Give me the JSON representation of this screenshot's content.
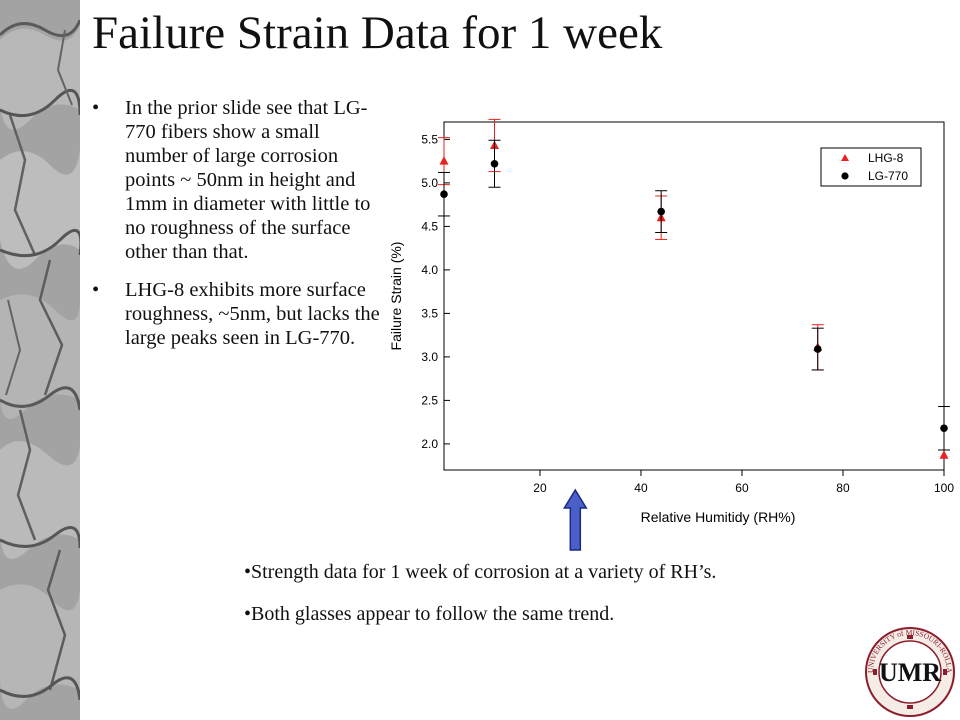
{
  "title": "Failure Strain Data for 1 week",
  "bullets": [
    "In the prior slide see that LG-770 fibers show a small number of large corrosion points ~ 50nm in height and 1mm in diameter with little to no roughness of the surface other than that.",
    "LHG-8 exhibits more surface roughness, ~5nm, but lacks the large peaks seen in LG-770."
  ],
  "bullet_glyph": "•",
  "notes": [
    "•Strength data for 1 week of corrosion at a variety of RH’s.",
    "•Both glasses appear to follow the same trend."
  ],
  "logo": {
    "text": "UNIVERSITY of MISSOURI-ROLLA",
    "monogram": "UMR",
    "subtext": "1870 · SCHOOL of MINES and METALLURGY"
  },
  "colors": {
    "lhg8": "#e8231e",
    "lg770": "#000000",
    "arrow_fill": "#4a5fc7",
    "arrow_stroke": "#1a2a80",
    "seal": "#8b1d2c"
  },
  "chart_data": {
    "type": "scatter",
    "title": "",
    "xlabel": "Relative Humitidy (RH%)",
    "ylabel": "Failure Strain (%)",
    "xlim": [
      1,
      100
    ],
    "ylim": [
      1.7,
      5.7
    ],
    "xticks": [
      20,
      40,
      60,
      80,
      100
    ],
    "yticks": [
      2.0,
      2.5,
      3.0,
      3.5,
      4.0,
      4.5,
      5.0,
      5.5
    ],
    "grid": false,
    "legend_position": "top-right",
    "series": [
      {
        "name": "LHG-8",
        "marker": "triangle",
        "points": [
          {
            "x": 1,
            "y": 5.25,
            "err": 0.27
          },
          {
            "x": 11,
            "y": 5.43,
            "err": 0.3
          },
          {
            "x": 44,
            "y": 4.6,
            "err": 0.25
          },
          {
            "x": 75,
            "y": 3.11,
            "err": 0.26
          },
          {
            "x": 100,
            "y": 1.87,
            "err": 0.0
          }
        ]
      },
      {
        "name": "LG-770",
        "marker": "circle",
        "points": [
          {
            "x": 1,
            "y": 4.87,
            "err": 0.25
          },
          {
            "x": 11,
            "y": 5.22,
            "err": 0.27
          },
          {
            "x": 44,
            "y": 4.67,
            "err": 0.24
          },
          {
            "x": 75,
            "y": 3.09,
            "err": 0.24
          },
          {
            "x": 100,
            "y": 2.18,
            "err": 0.25
          }
        ]
      }
    ],
    "annotation_arrow_x": 27
  }
}
